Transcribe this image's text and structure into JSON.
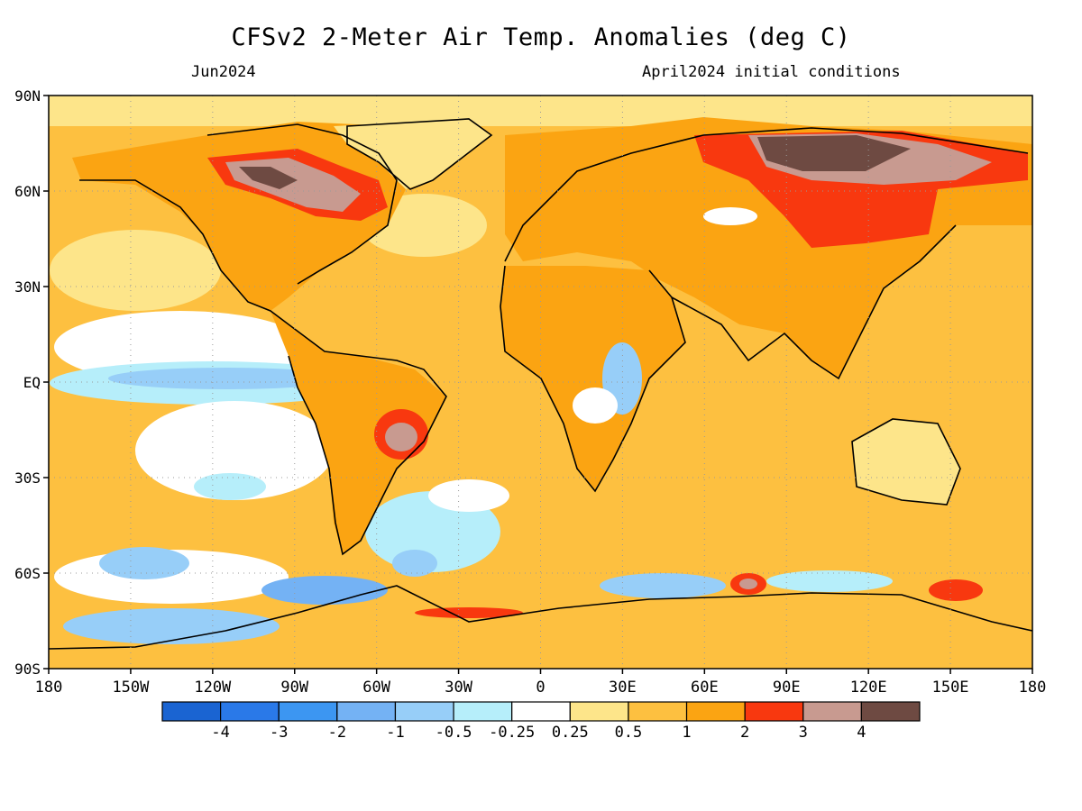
{
  "header": {
    "title": "CFSv2 2-Meter Air Temp. Anomalies (deg C)",
    "valid_month": "Jun2024",
    "init": "April2024 initial conditions"
  },
  "map": {
    "lat_ticks": [
      "90N",
      "60N",
      "30N",
      "EQ",
      "30S",
      "60S",
      "90S"
    ],
    "lat_values": [
      90,
      60,
      30,
      0,
      -30,
      -60,
      -90
    ],
    "lon_ticks": [
      "180",
      "150W",
      "120W",
      "90W",
      "60W",
      "30W",
      "0",
      "30E",
      "60E",
      "90E",
      "120E",
      "150E",
      "180"
    ],
    "lon_values": [
      -180,
      -150,
      -120,
      -90,
      -60,
      -30,
      0,
      30,
      60,
      90,
      120,
      150,
      180
    ],
    "grid": true
  },
  "colorbar": {
    "labels": [
      "-4",
      "-3",
      "-2",
      "-1",
      "-0.5",
      "-0.25",
      "0.25",
      "0.5",
      "1",
      "2",
      "3",
      "4"
    ],
    "colors": [
      "#1a64d2",
      "#2a79e8",
      "#3c96f2",
      "#74b2f4",
      "#97cef8",
      "#b6eefa",
      "#ffffff",
      "#fde58a",
      "#fdc040",
      "#fba412",
      "#f8380f",
      "#c89a90",
      "#6e4a42"
    ]
  },
  "palette": {
    "ocean_base": "#fdc040",
    "land_base": "#fba412"
  }
}
